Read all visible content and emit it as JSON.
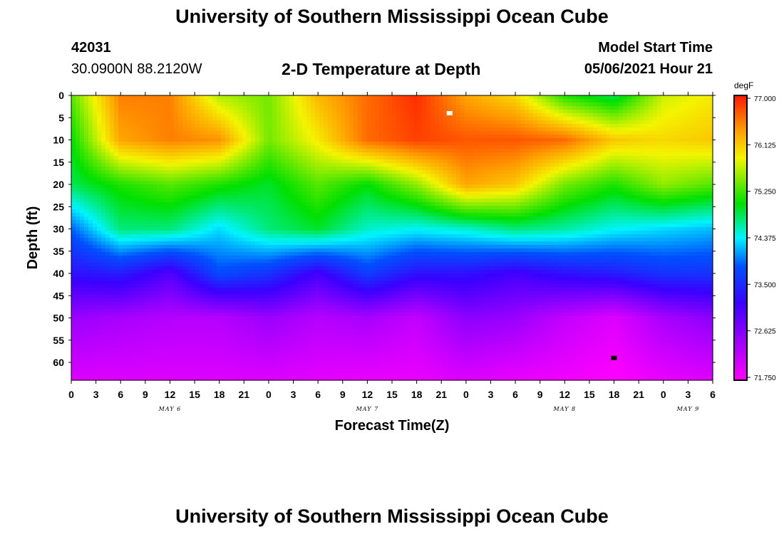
{
  "header": {
    "title": "University of Southern Mississippi Ocean Cube",
    "station_id": "42031",
    "coords": "30.0900N  88.2120W",
    "plot_title": "2-D Temperature at Depth",
    "model_start_label": "Model Start Time",
    "model_start_value": "05/06/2021 Hour 21"
  },
  "footer": {
    "title": "University of Southern Mississippi Ocean Cube"
  },
  "colors": {
    "min_marker": "#000000",
    "max_marker": "#ffffff"
  },
  "chart_data": {
    "type": "heatmap",
    "title": "2-D Temperature at Depth",
    "xlabel": "Forecast Time(Z)",
    "ylabel": "Depth (ft)",
    "colorbar_unit": "degF",
    "colorbar_ticks": [
      "77.000",
      "76.125",
      "75.250",
      "74.375",
      "73.500",
      "72.625",
      "71.750"
    ],
    "value_range": [
      71.75,
      77.0
    ],
    "ylim": [
      0,
      64
    ],
    "y_ticks": [
      "0",
      "5",
      "10",
      "15",
      "20",
      "25",
      "30",
      "35",
      "40",
      "45",
      "50",
      "55",
      "60"
    ],
    "x_range_hours": [
      0,
      78
    ],
    "x_ticks": [
      "0",
      "3",
      "6",
      "9",
      "12",
      "15",
      "18",
      "21",
      "0",
      "3",
      "6",
      "9",
      "12",
      "15",
      "18",
      "21",
      "0",
      "3",
      "6",
      "9",
      "12",
      "15",
      "18",
      "21",
      "0",
      "3",
      "6"
    ],
    "date_labels": [
      {
        "text": "MAY 6",
        "hour": 12
      },
      {
        "text": "MAY 7",
        "hour": 36
      },
      {
        "text": "MAY 8",
        "hour": 60
      },
      {
        "text": "MAY 9",
        "hour": 75
      }
    ],
    "markers": [
      {
        "type": "max",
        "hour": 46,
        "depth": 4
      },
      {
        "type": "min",
        "hour": 66,
        "depth": 59
      }
    ],
    "time_hours": [
      0,
      6,
      12,
      18,
      24,
      30,
      36,
      42,
      48,
      54,
      60,
      66,
      72,
      78
    ],
    "depths_ft": [
      0,
      10,
      20,
      30,
      40,
      50,
      64
    ],
    "temperature_degF": [
      [
        75.3,
        76.5,
        76.5,
        75.6,
        75.4,
        76.2,
        76.6,
        76.9,
        76.3,
        76.0,
        75.1,
        74.8,
        75.7,
        75.9
      ],
      [
        75.0,
        76.3,
        76.5,
        76.4,
        75.4,
        75.9,
        76.6,
        76.8,
        76.7,
        76.7,
        76.6,
        76.1,
        76.0,
        76.1
      ],
      [
        74.8,
        75.1,
        75.3,
        75.1,
        74.9,
        75.3,
        75.0,
        75.5,
        76.3,
        76.1,
        75.4,
        75.1,
        75.5,
        75.3
      ],
      [
        73.9,
        74.7,
        74.7,
        74.3,
        74.7,
        74.9,
        74.5,
        74.4,
        74.5,
        74.7,
        74.6,
        74.4,
        74.3,
        74.2
      ],
      [
        73.3,
        73.4,
        73.0,
        73.8,
        73.6,
        73.1,
        73.7,
        73.3,
        73.3,
        73.1,
        73.3,
        73.4,
        73.6,
        73.6
      ],
      [
        72.5,
        72.4,
        72.3,
        72.3,
        72.5,
        72.3,
        72.4,
        72.2,
        72.6,
        72.5,
        72.2,
        72.0,
        72.4,
        72.6
      ],
      [
        72.0,
        72.0,
        72.0,
        72.0,
        72.0,
        71.95,
        71.9,
        71.9,
        72.0,
        71.9,
        71.85,
        71.75,
        71.9,
        72.0
      ]
    ]
  }
}
